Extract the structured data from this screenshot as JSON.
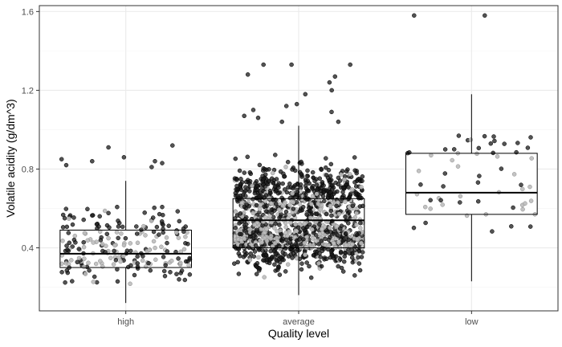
{
  "chart_data": {
    "type": "box",
    "xlabel": "Quality level",
    "ylabel": "Volatile acidity (g/dm^3)",
    "categories": [
      "high",
      "average",
      "low"
    ],
    "ylim": [
      0.08,
      1.63
    ],
    "yticks": [
      0.4,
      0.8,
      1.2,
      1.6
    ],
    "ytick_labels": [
      "0.4",
      "0.8",
      "1.2",
      "1.6"
    ],
    "grid": true,
    "jitter_points": true,
    "boxes": [
      {
        "category": "high",
        "whisker_low": 0.12,
        "q1": 0.3,
        "median": 0.37,
        "q3": 0.49,
        "whisker_high": 0.74,
        "outliers": [
          0.92,
          0.91,
          0.86,
          0.85,
          0.84,
          0.84,
          0.83,
          0.82,
          0.81
        ]
      },
      {
        "category": "average",
        "whisker_low": 0.16,
        "q1": 0.4,
        "median": 0.54,
        "q3": 0.65,
        "whisker_high": 1.02,
        "outliers": [
          1.04,
          1.04,
          1.06,
          1.07,
          1.09,
          1.1,
          1.12,
          1.13,
          1.18,
          1.2,
          1.24,
          1.27,
          1.28,
          1.33,
          1.33,
          1.33
        ]
      },
      {
        "category": "low",
        "whisker_low": 0.23,
        "q1": 0.57,
        "median": 0.68,
        "q3": 0.88,
        "whisker_high": 1.18,
        "outliers": [
          1.58,
          1.58
        ]
      }
    ],
    "point_counts": [
      220,
      1320,
      60
    ],
    "colors": {
      "panel_border": "#333333",
      "grid_major": "#ebebeb",
      "grid_minor": "#f5f5f5",
      "box_line": "#000000",
      "box_fill": "#ffffff",
      "point_dark": "#1a1a1a",
      "point_light": "#bdbdbd"
    }
  }
}
